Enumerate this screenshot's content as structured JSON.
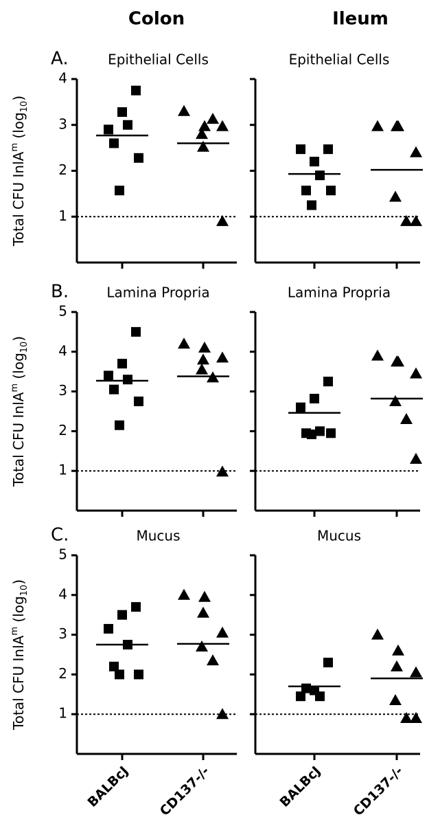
{
  "column_titles": [
    "Colon",
    "Ileum"
  ],
  "categories": [
    "BALBcJ",
    "CD137-/-"
  ],
  "ylabel": {
    "main": "Total CFU InlA",
    "sup": "m",
    "mid": " (log",
    "sub": "10",
    "end": ")"
  },
  "chart_data": [
    {
      "type": "scatter",
      "letter": "A.",
      "title": "Epithelial Cells",
      "ylim": [
        0,
        4
      ],
      "yticks": [
        1,
        2,
        3,
        4
      ],
      "ytick_labels": true,
      "threshold": 1,
      "series": [
        {
          "marker": "square",
          "color": "#000000",
          "values": [
            3.75,
            3.28,
            2.9,
            3.0,
            2.6,
            2.28,
            1.57
          ],
          "mean": 2.77
        },
        {
          "marker": "triangle",
          "color": "#000000",
          "values": [
            3.3,
            2.97,
            2.52,
            2.97,
            2.8,
            3.13,
            0.9
          ],
          "mean": 2.6
        }
      ]
    },
    {
      "type": "scatter",
      "title": "Epithelial Cells",
      "ylim": [
        0,
        4
      ],
      "yticks": [
        1,
        2,
        3,
        4
      ],
      "ytick_labels": false,
      "threshold": 1,
      "series": [
        {
          "marker": "square",
          "color": "#000000",
          "values": [
            2.47,
            2.2,
            2.47,
            1.9,
            1.57,
            1.57,
            1.25
          ],
          "mean": 1.93
        },
        {
          "marker": "triangle",
          "color": "#000000",
          "values": [
            2.97,
            2.97,
            2.97,
            2.4,
            1.43,
            0.9,
            0.9
          ],
          "mean": 2.02
        }
      ]
    },
    {
      "type": "scatter",
      "letter": "B.",
      "title": "Lamina Propria",
      "ylim": [
        0,
        5
      ],
      "yticks": [
        1,
        2,
        3,
        4,
        5
      ],
      "ytick_labels": true,
      "threshold": 1,
      "series": [
        {
          "marker": "square",
          "color": "#000000",
          "values": [
            4.5,
            3.7,
            3.4,
            3.3,
            3.05,
            2.75,
            2.15
          ],
          "mean": 3.27
        },
        {
          "marker": "triangle",
          "color": "#000000",
          "values": [
            4.2,
            4.1,
            3.8,
            3.85,
            3.55,
            3.35,
            0.98
          ],
          "mean": 3.38
        }
      ]
    },
    {
      "type": "scatter",
      "title": "Lamina Propria",
      "ylim": [
        0,
        5
      ],
      "yticks": [
        1,
        2,
        3,
        4,
        5
      ],
      "ytick_labels": false,
      "threshold": 1,
      "series": [
        {
          "marker": "square",
          "color": "#000000",
          "values": [
            3.25,
            2.82,
            2.6,
            2.0,
            1.95,
            1.95,
            1.92
          ],
          "mean": 2.46
        },
        {
          "marker": "triangle",
          "color": "#000000",
          "values": [
            3.9,
            3.75,
            3.75,
            3.45,
            2.75,
            2.3,
            1.3
          ],
          "mean": 2.82
        }
      ]
    },
    {
      "type": "scatter",
      "letter": "C.",
      "title": "Mucus",
      "ylim": [
        0,
        5
      ],
      "yticks": [
        1,
        2,
        3,
        4,
        5
      ],
      "ytick_labels": true,
      "threshold": 1,
      "series": [
        {
          "marker": "square",
          "color": "#000000",
          "values": [
            3.7,
            3.5,
            3.15,
            2.75,
            2.2,
            2.0,
            2.0
          ],
          "mean": 2.75
        },
        {
          "marker": "triangle",
          "color": "#000000",
          "values": [
            4.0,
            3.95,
            3.55,
            3.05,
            2.7,
            2.35,
            1.0
          ],
          "mean": 2.77
        }
      ]
    },
    {
      "type": "scatter",
      "title": "Mucus",
      "ylim": [
        0,
        5
      ],
      "yticks": [
        1,
        2,
        3,
        4,
        5
      ],
      "ytick_labels": false,
      "threshold": 1,
      "series": [
        {
          "marker": "square",
          "color": "#000000",
          "values": [
            2.3,
            1.6,
            1.45,
            1.45,
            1.65
          ],
          "mean": 1.7
        },
        {
          "marker": "triangle",
          "color": "#000000",
          "values": [
            3.0,
            2.6,
            2.2,
            2.05,
            1.35,
            0.9,
            0.9
          ],
          "mean": 1.9
        }
      ]
    }
  ]
}
